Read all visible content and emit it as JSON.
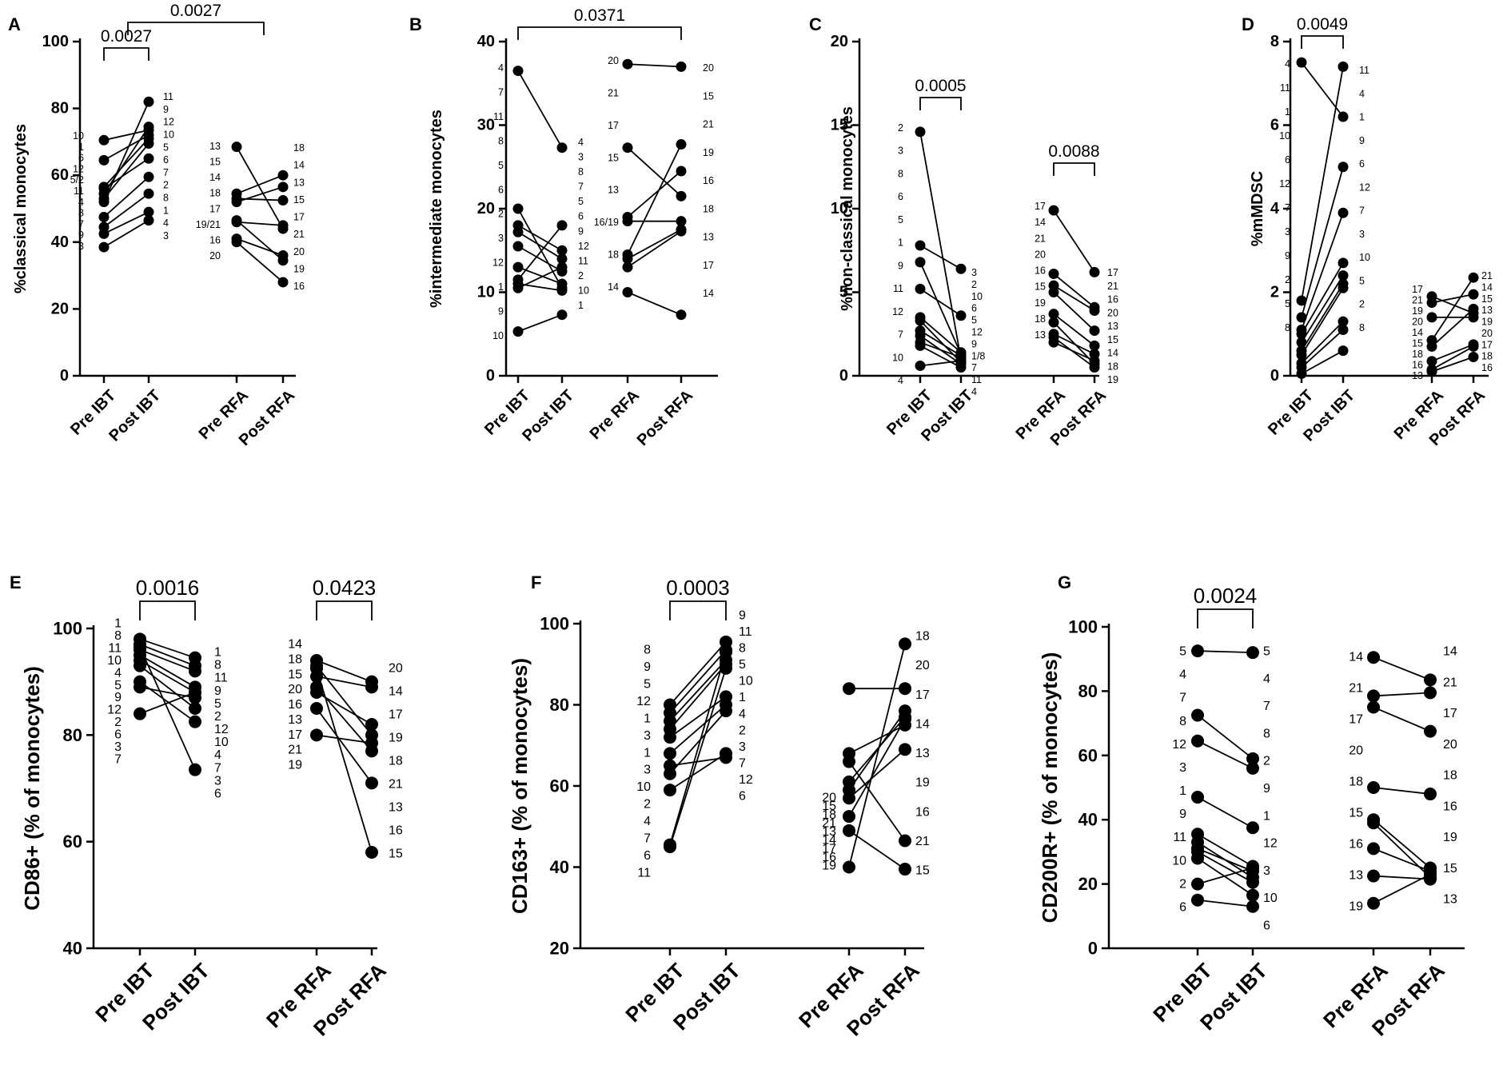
{
  "figure": {
    "letters": [
      "A",
      "B",
      "C",
      "D",
      "E",
      "F",
      "G"
    ],
    "groups": [
      "Pre IBT",
      "Post IBT",
      "Pre RFA",
      "Post RFA"
    ]
  },
  "chart_data": [
    {
      "type": "scatter",
      "panel": "A",
      "ylabel": "%classical monocytes",
      "ylim": [
        0,
        100
      ],
      "yticks": [
        0,
        20,
        40,
        60,
        80,
        100
      ],
      "categories": [
        "Pre IBT",
        "Post IBT",
        "Pre RFA",
        "Post RFA"
      ],
      "pairs_IBT": [
        [
          70.5,
          73.5
        ],
        [
          64.5,
          72
        ],
        [
          56.5,
          71
        ],
        [
          54.5,
          74.5
        ],
        [
          53,
          69.5
        ],
        [
          56,
          65
        ],
        [
          47.5,
          59.5
        ],
        [
          42.5,
          49
        ],
        [
          44.5,
          54.5
        ],
        [
          38.5,
          46.5
        ],
        [
          52,
          82
        ]
      ],
      "pairs_RFA": [
        [
          68.5,
          44
        ],
        [
          54.5,
          60
        ],
        [
          53,
          52.5
        ],
        [
          52,
          56.5
        ],
        [
          46,
          45
        ],
        [
          46.5,
          34.5
        ],
        [
          41,
          36
        ],
        [
          40,
          28
        ]
      ],
      "labels": [
        [
          "10",
          "1",
          "6",
          "12",
          "5/2",
          "11",
          "4",
          "8",
          "7",
          "9",
          "3"
        ],
        [
          "11",
          "9",
          "12",
          "10",
          "5",
          "6",
          "7",
          "2",
          "8",
          "1",
          "4",
          "3"
        ],
        [
          "13",
          "15",
          "14",
          "18",
          "17",
          "19/21",
          "16",
          "20"
        ],
        [
          "18",
          "14",
          "13",
          "15",
          "17",
          "21",
          "20",
          "19",
          "16"
        ]
      ],
      "brackets": [
        {
          "from": "Pre IBT",
          "to": "Post IBT",
          "p": "0.0027"
        },
        {
          "from": "Pre IBT",
          "to": "Pre RFA",
          "p": "0.0027"
        }
      ]
    },
    {
      "type": "scatter",
      "panel": "B",
      "ylabel": "%intermediate monocytes",
      "ylim": [
        0,
        40
      ],
      "yticks": [
        0,
        10,
        20,
        30,
        40
      ],
      "categories": [
        "Pre IBT",
        "Post IBT",
        "Pre RFA",
        "Post RFA"
      ],
      "pairs_IBT": [
        [
          36.5,
          27.3
        ],
        [
          20,
          10.5
        ],
        [
          18,
          15
        ],
        [
          17.2,
          14
        ],
        [
          15.5,
          12.5
        ],
        [
          13,
          11
        ],
        [
          11.5,
          18
        ],
        [
          11,
          10.2
        ],
        [
          10.5,
          13
        ],
        [
          5.3,
          7.3
        ]
      ],
      "pairs_RFA": [
        [
          37.3,
          37
        ],
        [
          27.3,
          21.5
        ],
        [
          19,
          24.5
        ],
        [
          18.5,
          18.5
        ],
        [
          14.5,
          27.7
        ],
        [
          14,
          17.5
        ],
        [
          13,
          17.3
        ],
        [
          10,
          7.3
        ]
      ],
      "labels": [
        [
          "4",
          "7",
          "11",
          "8",
          "5",
          "6",
          "2",
          "3",
          "12",
          "1",
          "9",
          "10"
        ],
        [
          "4",
          "3",
          "8",
          "7",
          "5",
          "6",
          "9",
          "12",
          "11",
          "2",
          "10",
          "1"
        ],
        [
          "20",
          "21",
          "17",
          "15",
          "13",
          "16/19",
          "18",
          "14"
        ],
        [
          "20",
          "15",
          "21",
          "19",
          "16",
          "18",
          "13",
          "17",
          "14"
        ]
      ],
      "brackets": [
        {
          "from": "Pre IBT",
          "to": "Post RFA",
          "p": "0.0371"
        }
      ]
    },
    {
      "type": "scatter",
      "panel": "C",
      "ylabel": "%non-classical monocytes",
      "ylim": [
        0,
        20
      ],
      "yticks": [
        0,
        5,
        10,
        15,
        20
      ],
      "categories": [
        "Pre IBT",
        "Post IBT",
        "Pre RFA",
        "Post RFA"
      ],
      "pairs_IBT": [
        [
          14.6,
          1.0
        ],
        [
          7.8,
          6.4
        ],
        [
          6.8,
          1.3
        ],
        [
          5.2,
          3.6
        ],
        [
          3.5,
          1.4
        ],
        [
          3.3,
          0.8
        ],
        [
          2.7,
          1.2
        ],
        [
          2.4,
          0.7
        ],
        [
          2.0,
          1.1
        ],
        [
          1.8,
          0.5
        ],
        [
          0.6,
          0.9
        ]
      ],
      "pairs_RFA": [
        [
          9.9,
          6.2
        ],
        [
          6.1,
          4.1
        ],
        [
          5.4,
          3.9
        ],
        [
          5.0,
          2.7
        ],
        [
          3.7,
          1.8
        ],
        [
          3.2,
          0.7
        ],
        [
          2.5,
          1.3
        ],
        [
          2.3,
          0.5
        ],
        [
          2.0,
          0.9
        ]
      ],
      "labels": [
        [
          "2",
          "3",
          "8",
          "6",
          "5",
          "1",
          "9",
          "11",
          "12",
          "7",
          "10",
          "4"
        ],
        [
          "3",
          "2",
          "10",
          "6",
          "5",
          "12",
          "9",
          "1/8",
          "7",
          "11",
          "4"
        ],
        [
          "17",
          "14",
          "21",
          "20",
          "16",
          "15",
          "19",
          "18",
          "13"
        ],
        [
          "17",
          "21",
          "16",
          "20",
          "13",
          "15",
          "14",
          "18",
          "19"
        ]
      ],
      "brackets": [
        {
          "from": "Pre IBT",
          "to": "Post IBT",
          "p": "0.0005"
        },
        {
          "from": "Pre RFA",
          "to": "Post RFA",
          "p": "0.0088"
        }
      ]
    },
    {
      "type": "scatter",
      "panel": "D",
      "ylabel": "%mMDSC",
      "ylim": [
        0,
        8
      ],
      "yticks": [
        0,
        2,
        4,
        6,
        8
      ],
      "categories": [
        "Pre IBT",
        "Post IBT",
        "Pre RFA",
        "Post RFA"
      ],
      "pairs_IBT": [
        [
          7.5,
          6.2
        ],
        [
          1.8,
          7.4
        ],
        [
          1.4,
          5.0
        ],
        [
          1.1,
          3.9
        ],
        [
          1.0,
          2.7
        ],
        [
          0.8,
          2.4
        ],
        [
          0.6,
          2.2
        ],
        [
          0.5,
          2.1
        ],
        [
          0.3,
          1.3
        ],
        [
          0.2,
          1.1
        ],
        [
          0.05,
          0.6
        ]
      ],
      "pairs_RFA": [
        [
          1.9,
          1.5
        ],
        [
          1.75,
          1.95
        ],
        [
          1.4,
          1.4
        ],
        [
          0.85,
          2.35
        ],
        [
          0.7,
          1.6
        ],
        [
          0.35,
          0.75
        ],
        [
          0.15,
          0.7
        ],
        [
          0.1,
          0.45
        ]
      ],
      "labels": [
        [
          "4",
          "11",
          "1",
          "10",
          "6",
          "12",
          "7",
          "3",
          "9",
          "2",
          "5",
          "8"
        ],
        [
          "11",
          "4",
          "1",
          "9",
          "6",
          "12",
          "7",
          "3",
          "10",
          "5",
          "2",
          "8"
        ],
        [
          "17",
          "21",
          "19",
          "20",
          "14",
          "15",
          "18",
          "16",
          "13"
        ],
        [
          "21",
          "14",
          "15",
          "13",
          "19",
          "20",
          "17",
          "18",
          "16"
        ]
      ],
      "brackets": [
        {
          "from": "Pre IBT",
          "to": "Post IBT",
          "p": "0.0049"
        }
      ]
    },
    {
      "type": "scatter",
      "panel": "E",
      "ylabel": "CD86+ (% of monocytes)",
      "ylim": [
        40,
        100
      ],
      "yticks": [
        40,
        60,
        80,
        100
      ],
      "categories": [
        "Pre IBT",
        "Post IBT",
        "Pre RFA",
        "Post RFA"
      ],
      "pairs_IBT": [
        [
          98,
          94.5
        ],
        [
          97,
          93
        ],
        [
          96,
          92
        ],
        [
          95,
          89
        ],
        [
          94,
          88
        ],
        [
          93,
          85
        ],
        [
          90,
          82.5
        ],
        [
          89,
          87
        ],
        [
          84,
          88
        ],
        [
          96.5,
          73.5
        ]
      ],
      "pairs_RFA": [
        [
          94,
          90
        ],
        [
          93,
          80
        ],
        [
          91,
          89
        ],
        [
          89,
          77
        ],
        [
          88,
          82
        ],
        [
          85,
          71
        ],
        [
          80,
          78.5
        ],
        [
          92.5,
          58
        ]
      ],
      "labels": [
        [
          "1",
          "8",
          "11",
          "10",
          "4",
          "5",
          "9",
          "12",
          "2",
          "6",
          "3",
          "7"
        ],
        [
          "1",
          "8",
          "11",
          "9",
          "5",
          "2",
          "12",
          "10",
          "4",
          "7",
          "3",
          "6"
        ],
        [
          "14",
          "18",
          "15",
          "20",
          "16",
          "13",
          "17",
          "21",
          "19"
        ],
        [
          "20",
          "14",
          "17",
          "19",
          "18",
          "21",
          "13",
          "16",
          "15"
        ]
      ],
      "brackets": [
        {
          "from": "Pre IBT",
          "to": "Post IBT",
          "p": "0.0016"
        },
        {
          "from": "Pre RFA",
          "to": "Post RFA",
          "p": "0.0423"
        }
      ]
    },
    {
      "type": "scatter",
      "panel": "F",
      "ylabel": "CD163+ (% of monocytes)",
      "ylim": [
        20,
        100
      ],
      "yticks": [
        20,
        40,
        60,
        80,
        100
      ],
      "categories": [
        "Pre IBT",
        "Post IBT",
        "Pre RFA",
        "Post RFA"
      ],
      "pairs_IBT": [
        [
          80,
          95.5
        ],
        [
          78,
          93.5
        ],
        [
          76,
          91
        ],
        [
          74,
          90
        ],
        [
          72,
          82
        ],
        [
          68,
          80
        ],
        [
          65,
          67
        ],
        [
          63,
          78.5
        ],
        [
          59,
          68
        ],
        [
          45.5,
          93
        ],
        [
          45,
          89
        ]
      ],
      "pairs_RFA": [
        [
          84,
          84
        ],
        [
          68,
          75
        ],
        [
          66,
          46.5
        ],
        [
          61,
          77
        ],
        [
          59,
          78.5
        ],
        [
          57,
          69
        ],
        [
          52.5,
          76.5
        ],
        [
          49,
          39.5
        ],
        [
          40,
          95
        ]
      ],
      "labels": [
        [
          "8",
          "9",
          "5",
          "12",
          "1",
          "3",
          "1",
          "3",
          "10",
          "2",
          "4",
          "7",
          "6",
          "11"
        ],
        [
          "9",
          "11",
          "8",
          "5",
          "10",
          "1",
          "4",
          "2",
          "3",
          "7",
          "12",
          "6"
        ],
        [
          "20",
          "15",
          "18",
          "21",
          "13",
          "14",
          "17",
          "16",
          "19"
        ],
        [
          "18",
          "20",
          "17",
          "14",
          "13",
          "19",
          "16",
          "21",
          "15"
        ]
      ],
      "brackets": [
        {
          "from": "Pre IBT",
          "to": "Post IBT",
          "p": "0.0003"
        }
      ]
    },
    {
      "type": "scatter",
      "panel": "G",
      "ylabel": "CD200R+ (% of monocytes)",
      "ylim": [
        0,
        100
      ],
      "yticks": [
        0,
        20,
        40,
        60,
        80,
        100
      ],
      "categories": [
        "Pre IBT",
        "Post IBT",
        "Pre RFA",
        "Post RFA"
      ],
      "pairs_IBT": [
        [
          92.5,
          92
        ],
        [
          72.5,
          59
        ],
        [
          64.5,
          56
        ],
        [
          47,
          37.5
        ],
        [
          35.5,
          25.5
        ],
        [
          33,
          22
        ],
        [
          31,
          24
        ],
        [
          30,
          20.5
        ],
        [
          28,
          16.5
        ],
        [
          20,
          25
        ],
        [
          15,
          13
        ]
      ],
      "pairs_RFA": [
        [
          90.5,
          83.5
        ],
        [
          78.5,
          79.5
        ],
        [
          75,
          67.5
        ],
        [
          50,
          48
        ],
        [
          40,
          25
        ],
        [
          39,
          22
        ],
        [
          31,
          24
        ],
        [
          22.5,
          21.5
        ],
        [
          14,
          23
        ]
      ],
      "labels": [
        [
          "5",
          "4",
          "7",
          "8",
          "12",
          "3",
          "1",
          "9",
          "11",
          "10",
          "2",
          "6"
        ],
        [
          "5",
          "4",
          "7",
          "8",
          "2",
          "9",
          "1",
          "12",
          "3",
          "10",
          "6"
        ],
        [
          "14",
          "21",
          "17",
          "20",
          "18",
          "15",
          "16",
          "13",
          "19"
        ],
        [
          "14",
          "21",
          "17",
          "20",
          "18",
          "16",
          "19",
          "15",
          "13"
        ]
      ],
      "brackets": [
        {
          "from": "Pre IBT",
          "to": "Post IBT",
          "p": "0.0024"
        }
      ]
    }
  ]
}
